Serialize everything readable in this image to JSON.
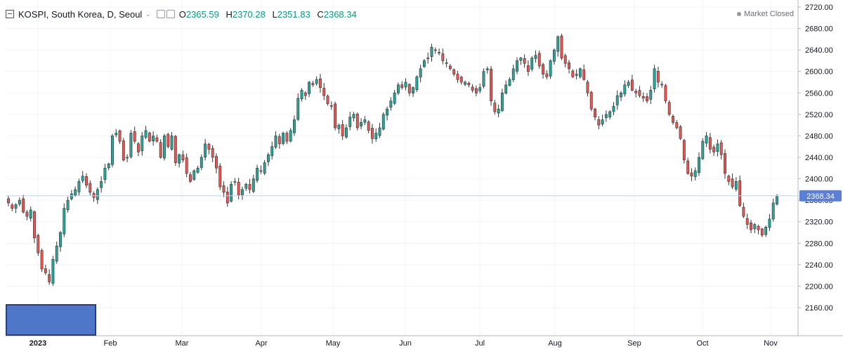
{
  "header": {
    "symbol": "KOSPI, South Korea, D, Seoul",
    "o_label": "O",
    "o_value": "2365.59",
    "h_label": "H",
    "h_value": "2370.28",
    "l_label": "L",
    "l_value": "2351.83",
    "c_label": "C",
    "c_value": "2368.34"
  },
  "market_status": "Market Closed",
  "colors": {
    "up": "#26a69a",
    "down": "#ef5350",
    "last_price_line": "#c5d0f0",
    "last_price_tag": "#5b7fd6"
  },
  "chart_data": {
    "type": "candlestick",
    "title": "KOSPI, South Korea, D, Seoul",
    "x_labels": [
      "2023",
      "Feb",
      "Mar",
      "Apr",
      "May",
      "Jun",
      "Jul",
      "Aug",
      "Sep",
      "Oct",
      "Nov"
    ],
    "y_ticks": [
      "2720.00",
      "2680.00",
      "2640.00",
      "2600.00",
      "2560.00",
      "2520.00",
      "2480.00",
      "2440.00",
      "2400.00",
      "2360.00",
      "2320.00",
      "2280.00",
      "2240.00",
      "2200.00",
      "2160.00"
    ],
    "ylim": [
      2150,
      2725
    ],
    "last_price": "2368.34",
    "grid": true,
    "closes": [
      2355,
      2345,
      2352,
      2360,
      2338,
      2330,
      2342,
      2290,
      2262,
      2232,
      2225,
      2208,
      2250,
      2275,
      2300,
      2345,
      2360,
      2372,
      2380,
      2395,
      2405,
      2388,
      2375,
      2365,
      2380,
      2395,
      2420,
      2428,
      2480,
      2485,
      2470,
      2435,
      2440,
      2485,
      2470,
      2450,
      2480,
      2490,
      2470,
      2480,
      2470,
      2440,
      2480,
      2460,
      2480,
      2430,
      2445,
      2435,
      2410,
      2395,
      2415,
      2420,
      2440,
      2465,
      2455,
      2440,
      2420,
      2385,
      2375,
      2355,
      2390,
      2395,
      2370,
      2380,
      2390,
      2380,
      2400,
      2420,
      2415,
      2430,
      2445,
      2460,
      2480,
      2465,
      2485,
      2470,
      2490,
      2510,
      2550,
      2565,
      2555,
      2580,
      2575,
      2585,
      2570,
      2555,
      2540,
      2535,
      2495,
      2500,
      2480,
      2495,
      2515,
      2520,
      2495,
      2505,
      2510,
      2490,
      2475,
      2485,
      2495,
      2520,
      2530,
      2545,
      2560,
      2575,
      2570,
      2580,
      2560,
      2570,
      2590,
      2605,
      2620,
      2625,
      2645,
      2640,
      2635,
      2620,
      2615,
      2605,
      2595,
      2585,
      2580,
      2580,
      2575,
      2565,
      2560,
      2570,
      2600,
      2605,
      2545,
      2525,
      2530,
      2560,
      2575,
      2585,
      2605,
      2620,
      2625,
      2615,
      2600,
      2625,
      2630,
      2610,
      2595,
      2590,
      2620,
      2640,
      2665,
      2625,
      2615,
      2605,
      2590,
      2595,
      2605,
      2585,
      2560,
      2530,
      2515,
      2500,
      2510,
      2520,
      2525,
      2535,
      2555,
      2560,
      2575,
      2580,
      2565,
      2560,
      2555,
      2550,
      2545,
      2565,
      2605,
      2580,
      2575,
      2545,
      2520,
      2505,
      2495,
      2475,
      2435,
      2410,
      2405,
      2415,
      2440,
      2470,
      2480,
      2455,
      2450,
      2465,
      2445,
      2410,
      2395,
      2385,
      2395,
      2350,
      2330,
      2315,
      2305,
      2315,
      2305,
      2295,
      2310,
      2325,
      2355,
      2368.34
    ]
  }
}
